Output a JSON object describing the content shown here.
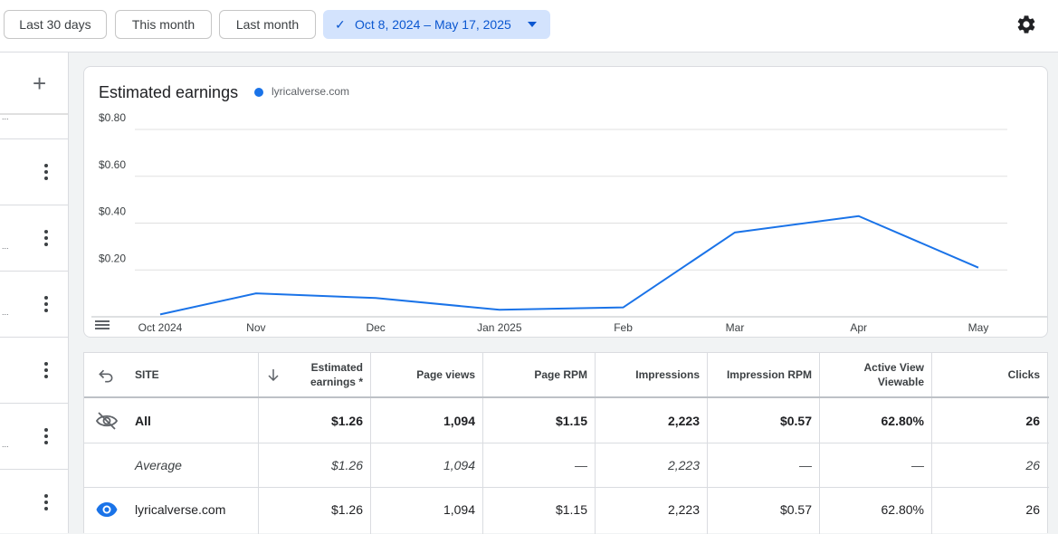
{
  "date_filters": {
    "last_30_days": "Last 30 days",
    "this_month": "This month",
    "last_month": "Last month",
    "selected_range": "Oct 8, 2024 – May 17, 2025"
  },
  "chart": {
    "title": "Estimated earnings",
    "legend_label": "lyricalverse.com"
  },
  "chart_data": {
    "type": "line",
    "title": "Estimated earnings",
    "series": [
      {
        "name": "lyricalverse.com",
        "color": "#1a73e8",
        "points": [
          {
            "x": "2024-10-08",
            "y": 0.01
          },
          {
            "x": "2024-11-01",
            "y": 0.1
          },
          {
            "x": "2024-12-01",
            "y": 0.08
          },
          {
            "x": "2025-01-01",
            "y": 0.03
          },
          {
            "x": "2025-02-01",
            "y": 0.04
          },
          {
            "x": "2025-03-01",
            "y": 0.36
          },
          {
            "x": "2025-04-01",
            "y": 0.43
          },
          {
            "x": "2025-05-01",
            "y": 0.21
          }
        ]
      }
    ],
    "x_tick_labels": [
      "Oct 2024",
      "Nov",
      "Dec",
      "Jan 2025",
      "Feb",
      "Mar",
      "Apr",
      "May"
    ],
    "y_tick_labels": [
      "$0.80",
      "$0.60",
      "$0.40",
      "$0.20"
    ],
    "y_ticks": [
      0.8,
      0.6,
      0.4,
      0.2
    ],
    "ylim": [
      0,
      0.8
    ],
    "grid": true,
    "legend_position": "top"
  },
  "table": {
    "headers": {
      "site": "SITE",
      "earnings": "Estimated earnings *",
      "page_views": "Page views",
      "page_rpm": "Page RPM",
      "impressions": "Impressions",
      "impression_rpm": "Impression RPM",
      "active_view": "Active View Viewable",
      "clicks": "Clicks"
    },
    "rows": [
      {
        "site": "All",
        "earnings": "$1.26",
        "page_views": "1,094",
        "page_rpm": "$1.15",
        "impressions": "2,223",
        "impression_rpm": "$0.57",
        "active_view": "62.80%",
        "clicks": "26"
      },
      {
        "site": "Average",
        "earnings": "$1.26",
        "page_views": "1,094",
        "page_rpm": "—",
        "impressions": "2,223",
        "impression_rpm": "—",
        "active_view": "—",
        "clicks": "26"
      },
      {
        "site": "lyricalverse.com",
        "earnings": "$1.26",
        "page_views": "1,094",
        "page_rpm": "$1.15",
        "impressions": "2,223",
        "impression_rpm": "$0.57",
        "active_view": "62.80%",
        "clicks": "26"
      }
    ]
  },
  "left_panel": {
    "ellipsis": "..."
  },
  "colors": {
    "accent": "#1a73e8",
    "selected_chip_bg": "#d3e3fd",
    "selected_chip_text": "#0b57d0"
  }
}
